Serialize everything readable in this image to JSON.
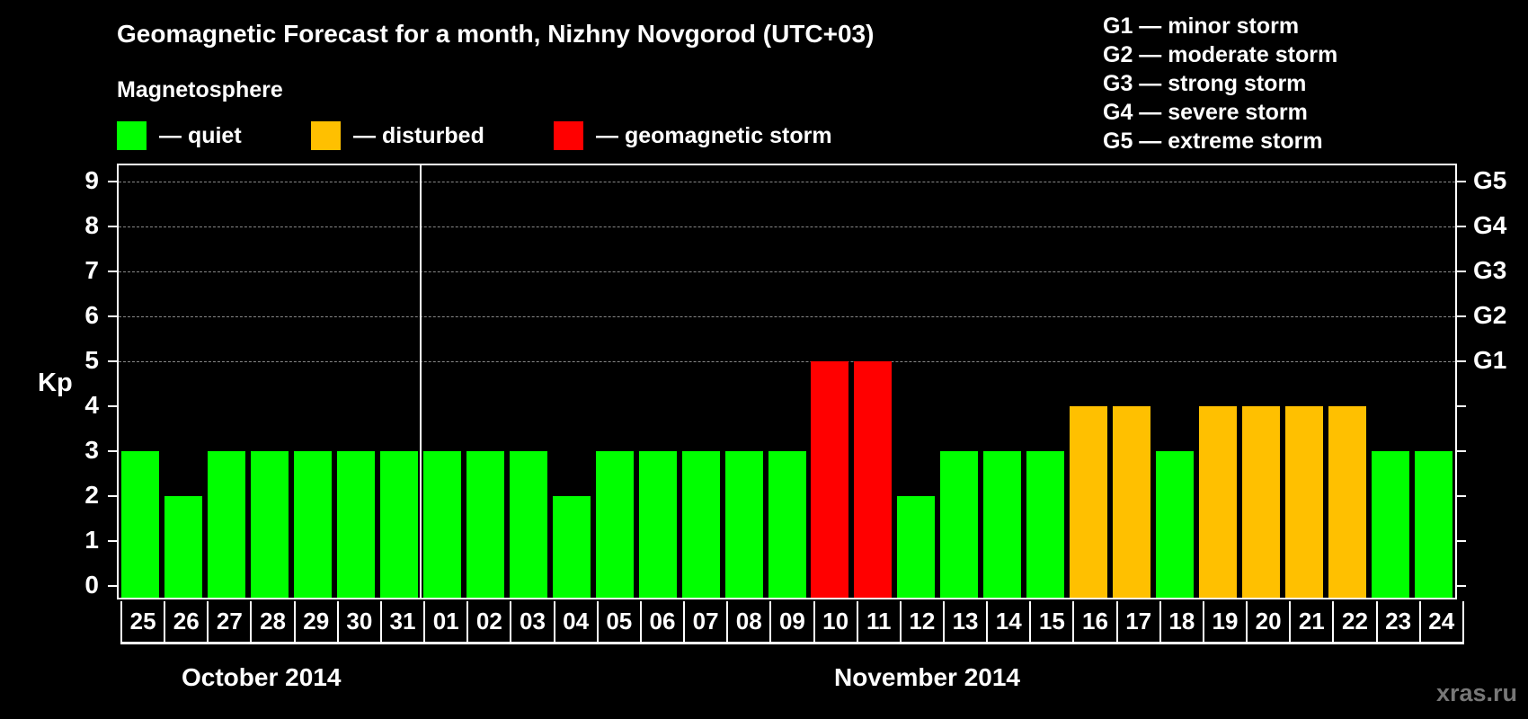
{
  "header": {
    "title": "Geomagnetic Forecast for a month, Nizhny Novgorod (UTC+03)",
    "subtitle": "Magnetosphere"
  },
  "legend": [
    {
      "label": "— quiet",
      "color": "#00ff00"
    },
    {
      "label": "— disturbed",
      "color": "#ffc000"
    },
    {
      "label": "— geomagnetic storm",
      "color": "#ff0000"
    }
  ],
  "storm_scale": [
    "G1 — minor storm",
    "G2 — moderate storm",
    "G3 — strong storm",
    "G4 — severe storm",
    "G5 — extreme storm"
  ],
  "axis": {
    "ylabel": "Kp",
    "yticks": [
      "0",
      "1",
      "2",
      "3",
      "4",
      "5",
      "6",
      "7",
      "8",
      "9"
    ],
    "g_ticks": [
      {
        "kp": 5,
        "label": "G1"
      },
      {
        "kp": 6,
        "label": "G2"
      },
      {
        "kp": 7,
        "label": "G3"
      },
      {
        "kp": 8,
        "label": "G4"
      },
      {
        "kp": 9,
        "label": "G5"
      }
    ]
  },
  "months": {
    "october": "October 2014",
    "november": "November 2014"
  },
  "watermark": "xras.ru",
  "chart_data": {
    "type": "bar",
    "title": "Geomagnetic Forecast for a month, Nizhny Novgorod (UTC+03)",
    "subtitle": "Magnetosphere",
    "xlabel": "October 2014 / November 2014",
    "ylabel": "Kp",
    "ylim": [
      0,
      9
    ],
    "grid": "dashed horizontal at Kp 5-9",
    "legend_position": "top",
    "categories": [
      "25",
      "26",
      "27",
      "28",
      "29",
      "30",
      "31",
      "01",
      "02",
      "03",
      "04",
      "05",
      "06",
      "07",
      "08",
      "09",
      "10",
      "11",
      "12",
      "13",
      "14",
      "15",
      "16",
      "17",
      "18",
      "19",
      "20",
      "21",
      "22",
      "23",
      "24"
    ],
    "values": [
      3,
      2,
      3,
      3,
      3,
      3,
      3,
      3,
      3,
      3,
      2,
      3,
      3,
      3,
      3,
      3,
      5,
      5,
      2,
      3,
      3,
      3,
      4,
      4,
      3,
      4,
      4,
      4,
      4,
      3,
      3
    ],
    "status": [
      "quiet",
      "quiet",
      "quiet",
      "quiet",
      "quiet",
      "quiet",
      "quiet",
      "quiet",
      "quiet",
      "quiet",
      "quiet",
      "quiet",
      "quiet",
      "quiet",
      "quiet",
      "quiet",
      "storm",
      "storm",
      "quiet",
      "quiet",
      "quiet",
      "quiet",
      "disturbed",
      "disturbed",
      "quiet",
      "disturbed",
      "disturbed",
      "disturbed",
      "disturbed",
      "quiet",
      "quiet"
    ],
    "colors": {
      "quiet": "#00ff00",
      "disturbed": "#ffc000",
      "storm": "#ff0000"
    },
    "secondary_axis": {
      "5": "G1",
      "6": "G2",
      "7": "G3",
      "8": "G4",
      "9": "G5"
    }
  }
}
